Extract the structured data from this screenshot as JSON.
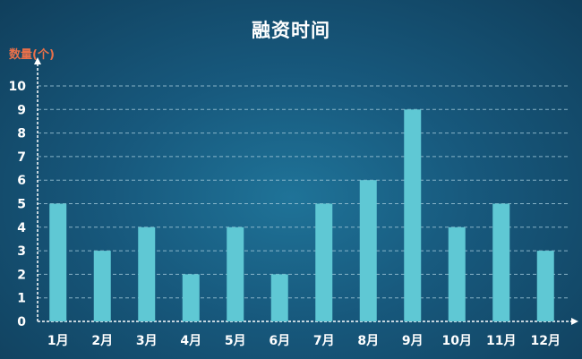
{
  "chart_data": {
    "type": "bar",
    "title": "融资时间",
    "ylabel": "数量(个)",
    "xlabel": "",
    "categories": [
      "1月",
      "2月",
      "3月",
      "4月",
      "5月",
      "6月",
      "7月",
      "8月",
      "9月",
      "10月",
      "11月",
      "12月"
    ],
    "values": [
      5,
      3,
      4,
      2,
      4,
      2,
      5,
      6,
      9,
      4,
      5,
      3
    ],
    "ylim": [
      0,
      10
    ],
    "yticks": [
      0,
      1,
      2,
      3,
      4,
      5,
      6,
      7,
      8,
      9,
      10
    ],
    "grid": true,
    "legend": "none"
  },
  "colors": {
    "bar": "#5fc8d4",
    "ylabel": "#e8704a",
    "text": "#ffffff",
    "grid": "#9cc4d6"
  }
}
